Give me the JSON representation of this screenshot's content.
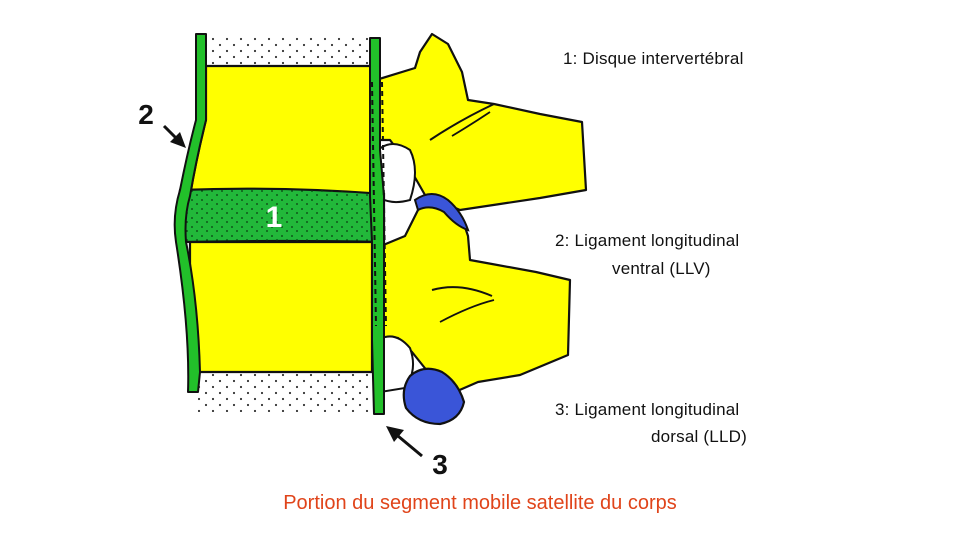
{
  "diagram": {
    "labels": {
      "disc_number": "1",
      "ventral_arrow_number": "2",
      "dorsal_arrow_number": "3"
    },
    "legend": {
      "item1": "1: Disque intervertébral",
      "item2_line1": "2: Ligament longitudinal",
      "item2_line2": "ventral (LLV)",
      "item3_line1": "3: Ligament longitudinal",
      "item3_line2": "dorsal (LLD)"
    },
    "caption": "Portion du segment mobile satellite du corps",
    "colors": {
      "bone": "#ffff00",
      "ligament_ventral": "#22c02a",
      "disc": "#22b83a",
      "ligament_dorsal": "#3a55d8",
      "outline": "#111111",
      "caption": "#e0441a"
    }
  }
}
